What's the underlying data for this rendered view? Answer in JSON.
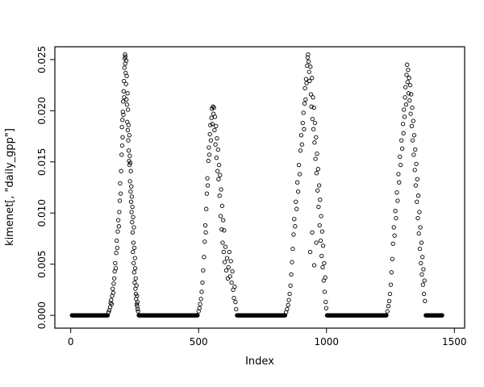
{
  "chart_data": {
    "type": "scatter",
    "title": "",
    "xlabel": "Index",
    "ylabel": "kimenet[, \"daily_gpp\"]",
    "xlim": [
      0,
      1500
    ],
    "ylim": [
      0.0,
      0.025
    ],
    "xticks": [
      0,
      500,
      1000,
      1500
    ],
    "yticks": [
      0.0,
      0.005,
      0.01,
      0.015,
      0.02,
      0.025
    ],
    "ytick_labels": [
      "0.000",
      "0.005",
      "0.010",
      "0.015",
      "0.020",
      "0.025"
    ],
    "grid": false,
    "legend": "none",
    "marker": {
      "shape": "open-circle",
      "color": "#000000"
    },
    "zero_step": 2,
    "zero_runs": [
      [
        5,
        146
      ],
      [
        266,
        497
      ],
      [
        650,
        838
      ],
      [
        1002,
        1234
      ],
      [
        1388,
        1452
      ]
    ],
    "points": [
      [
        148,
        0.0003
      ],
      [
        151,
        0.0005
      ],
      [
        154,
        0.0008
      ],
      [
        156,
        0.0012
      ],
      [
        158,
        0.0015
      ],
      [
        160,
        0.0011
      ],
      [
        162,
        0.0019
      ],
      [
        164,
        0.0026
      ],
      [
        166,
        0.0022
      ],
      [
        168,
        0.0031
      ],
      [
        170,
        0.0036
      ],
      [
        172,
        0.0043
      ],
      [
        174,
        0.0051
      ],
      [
        176,
        0.0046
      ],
      [
        178,
        0.0061
      ],
      [
        180,
        0.0073
      ],
      [
        182,
        0.0066
      ],
      [
        184,
        0.0082
      ],
      [
        186,
        0.0093
      ],
      [
        188,
        0.0087
      ],
      [
        190,
        0.0101
      ],
      [
        192,
        0.0112
      ],
      [
        193,
        0.0129
      ],
      [
        195,
        0.0119
      ],
      [
        197,
        0.0141
      ],
      [
        199,
        0.0157
      ],
      [
        200,
        0.0184
      ],
      [
        201,
        0.0166
      ],
      [
        202,
        0.0191
      ],
      [
        203,
        0.0174
      ],
      [
        204,
        0.0199
      ],
      [
        205,
        0.0209
      ],
      [
        206,
        0.0196
      ],
      [
        207,
        0.0219
      ],
      [
        208,
        0.0229
      ],
      [
        209,
        0.0213
      ],
      [
        210,
        0.0242
      ],
      [
        211,
        0.0251
      ],
      [
        212,
        0.0255
      ],
      [
        213,
        0.0246
      ],
      [
        214,
        0.0253
      ],
      [
        215,
        0.0237
      ],
      [
        216,
        0.0226
      ],
      [
        217,
        0.0249
      ],
      [
        218,
        0.0211
      ],
      [
        219,
        0.0234
      ],
      [
        220,
        0.0206
      ],
      [
        221,
        0.0189
      ],
      [
        222,
        0.0217
      ],
      [
        223,
        0.0181
      ],
      [
        224,
        0.0201
      ],
      [
        225,
        0.0171
      ],
      [
        226,
        0.0186
      ],
      [
        227,
        0.0161
      ],
      [
        228,
        0.0151
      ],
      [
        229,
        0.0176
      ],
      [
        230,
        0.0147
      ],
      [
        231,
        0.0156
      ],
      [
        232,
        0.0131
      ],
      [
        233,
        0.0149
      ],
      [
        234,
        0.0121
      ],
      [
        235,
        0.0141
      ],
      [
        236,
        0.0111
      ],
      [
        237,
        0.0126
      ],
      [
        238,
        0.0101
      ],
      [
        239,
        0.0116
      ],
      [
        240,
        0.0091
      ],
      [
        241,
        0.0106
      ],
      [
        242,
        0.0081
      ],
      [
        243,
        0.0062
      ],
      [
        244,
        0.0096
      ],
      [
        245,
        0.0071
      ],
      [
        246,
        0.0051
      ],
      [
        247,
        0.0086
      ],
      [
        248,
        0.0042
      ],
      [
        249,
        0.0066
      ],
      [
        250,
        0.0032
      ],
      [
        251,
        0.0056
      ],
      [
        252,
        0.0046
      ],
      [
        253,
        0.0026
      ],
      [
        254,
        0.0036
      ],
      [
        255,
        0.0021
      ],
      [
        256,
        0.0016
      ],
      [
        257,
        0.0029
      ],
      [
        258,
        0.0011
      ],
      [
        259,
        0.0019
      ],
      [
        260,
        0.0009
      ],
      [
        261,
        0.0013
      ],
      [
        262,
        0.0006
      ],
      [
        263,
        0.0004
      ],
      [
        500,
        0.0004
      ],
      [
        503,
        0.0007
      ],
      [
        506,
        0.0011
      ],
      [
        509,
        0.0016
      ],
      [
        512,
        0.0023
      ],
      [
        515,
        0.0032
      ],
      [
        518,
        0.0044
      ],
      [
        521,
        0.0057
      ],
      [
        524,
        0.0072
      ],
      [
        526,
        0.0088
      ],
      [
        528,
        0.0081
      ],
      [
        530,
        0.0104
      ],
      [
        532,
        0.0119
      ],
      [
        534,
        0.0134
      ],
      [
        536,
        0.0127
      ],
      [
        538,
        0.0151
      ],
      [
        540,
        0.0164
      ],
      [
        542,
        0.0157
      ],
      [
        544,
        0.0177
      ],
      [
        546,
        0.0186
      ],
      [
        548,
        0.0171
      ],
      [
        550,
        0.0193
      ],
      [
        552,
        0.0202
      ],
      [
        554,
        0.0187
      ],
      [
        556,
        0.0204
      ],
      [
        558,
        0.0197
      ],
      [
        560,
        0.0203
      ],
      [
        562,
        0.0181
      ],
      [
        564,
        0.0194
      ],
      [
        566,
        0.0167
      ],
      [
        568,
        0.0185
      ],
      [
        570,
        0.0154
      ],
      [
        572,
        0.0173
      ],
      [
        574,
        0.0141
      ],
      [
        576,
        0.0162
      ],
      [
        578,
        0.0133
      ],
      [
        580,
        0.0147
      ],
      [
        582,
        0.0117
      ],
      [
        584,
        0.0137
      ],
      [
        586,
        0.0097
      ],
      [
        588,
        0.0123
      ],
      [
        590,
        0.0084
      ],
      [
        592,
        0.0107
      ],
      [
        594,
        0.0071
      ],
      [
        596,
        0.0093
      ],
      [
        598,
        0.0062
      ],
      [
        600,
        0.0083
      ],
      [
        602,
        0.0052
      ],
      [
        605,
        0.0067
      ],
      [
        608,
        0.0044
      ],
      [
        611,
        0.0056
      ],
      [
        614,
        0.0036
      ],
      [
        617,
        0.0047
      ],
      [
        620,
        0.0062
      ],
      [
        623,
        0.0038
      ],
      [
        626,
        0.0053
      ],
      [
        629,
        0.0032
      ],
      [
        632,
        0.0043
      ],
      [
        635,
        0.0025
      ],
      [
        638,
        0.0017
      ],
      [
        641,
        0.0028
      ],
      [
        644,
        0.0013
      ],
      [
        647,
        0.0006
      ],
      [
        842,
        0.0003
      ],
      [
        846,
        0.0006
      ],
      [
        850,
        0.001
      ],
      [
        853,
        0.0015
      ],
      [
        856,
        0.0021
      ],
      [
        859,
        0.0029
      ],
      [
        862,
        0.004
      ],
      [
        865,
        0.0052
      ],
      [
        868,
        0.0065
      ],
      [
        871,
        0.0079
      ],
      [
        874,
        0.0094
      ],
      [
        877,
        0.0087
      ],
      [
        880,
        0.0111
      ],
      [
        883,
        0.0104
      ],
      [
        886,
        0.013
      ],
      [
        889,
        0.0121
      ],
      [
        892,
        0.0147
      ],
      [
        895,
        0.0138
      ],
      [
        898,
        0.0161
      ],
      [
        901,
        0.0176
      ],
      [
        904,
        0.0167
      ],
      [
        907,
        0.0188
      ],
      [
        910,
        0.0198
      ],
      [
        912,
        0.0182
      ],
      [
        914,
        0.0207
      ],
      [
        916,
        0.0222
      ],
      [
        918,
        0.0211
      ],
      [
        920,
        0.0231
      ],
      [
        922,
        0.0227
      ],
      [
        924,
        0.0244
      ],
      [
        926,
        0.0252
      ],
      [
        928,
        0.0255
      ],
      [
        930,
        0.0248
      ],
      [
        932,
        0.0238
      ],
      [
        934,
        0.0229
      ],
      [
        936,
        0.0062
      ],
      [
        937,
        0.0243
      ],
      [
        939,
        0.0216
      ],
      [
        941,
        0.0204
      ],
      [
        943,
        0.0232
      ],
      [
        944,
        0.0081
      ],
      [
        945,
        0.0192
      ],
      [
        947,
        0.0213
      ],
      [
        949,
        0.0182
      ],
      [
        951,
        0.0203
      ],
      [
        952,
        0.0049
      ],
      [
        953,
        0.0169
      ],
      [
        955,
        0.0188
      ],
      [
        957,
        0.0153
      ],
      [
        959,
        0.0174
      ],
      [
        960,
        0.0071
      ],
      [
        961,
        0.0139
      ],
      [
        963,
        0.0158
      ],
      [
        965,
        0.0122
      ],
      [
        967,
        0.0143
      ],
      [
        969,
        0.0106
      ],
      [
        971,
        0.0127
      ],
      [
        973,
        0.0088
      ],
      [
        975,
        0.0113
      ],
      [
        977,
        0.0073
      ],
      [
        979,
        0.0097
      ],
      [
        981,
        0.0058
      ],
      [
        983,
        0.0082
      ],
      [
        985,
        0.0047
      ],
      [
        987,
        0.0068
      ],
      [
        989,
        0.0034
      ],
      [
        991,
        0.0051
      ],
      [
        993,
        0.0023
      ],
      [
        995,
        0.0037
      ],
      [
        997,
        0.0013
      ],
      [
        999,
        0.0007
      ],
      [
        1238,
        0.0004
      ],
      [
        1242,
        0.0009
      ],
      [
        1245,
        0.0014
      ],
      [
        1248,
        0.0021
      ],
      [
        1251,
        0.003
      ],
      [
        1254,
        0.0042
      ],
      [
        1257,
        0.0055
      ],
      [
        1260,
        0.007
      ],
      [
        1263,
        0.0086
      ],
      [
        1266,
        0.0078
      ],
      [
        1269,
        0.0102
      ],
      [
        1272,
        0.0095
      ],
      [
        1275,
        0.012
      ],
      [
        1278,
        0.0112
      ],
      [
        1281,
        0.0138
      ],
      [
        1284,
        0.013
      ],
      [
        1287,
        0.0155
      ],
      [
        1290,
        0.0147
      ],
      [
        1293,
        0.0171
      ],
      [
        1296,
        0.0163
      ],
      [
        1299,
        0.0187
      ],
      [
        1301,
        0.0178
      ],
      [
        1303,
        0.0201
      ],
      [
        1305,
        0.0194
      ],
      [
        1307,
        0.0213
      ],
      [
        1309,
        0.0223
      ],
      [
        1311,
        0.0206
      ],
      [
        1313,
        0.0235
      ],
      [
        1315,
        0.0245
      ],
      [
        1317,
        0.0228
      ],
      [
        1319,
        0.024
      ],
      [
        1321,
        0.0217
      ],
      [
        1323,
        0.0232
      ],
      [
        1325,
        0.021
      ],
      [
        1327,
        0.0225
      ],
      [
        1329,
        0.0197
      ],
      [
        1331,
        0.0216
      ],
      [
        1333,
        0.0185
      ],
      [
        1335,
        0.0203
      ],
      [
        1337,
        0.0171
      ],
      [
        1339,
        0.019
      ],
      [
        1341,
        0.0157
      ],
      [
        1343,
        0.0176
      ],
      [
        1345,
        0.0142
      ],
      [
        1347,
        0.0162
      ],
      [
        1349,
        0.0127
      ],
      [
        1351,
        0.0148
      ],
      [
        1353,
        0.0111
      ],
      [
        1355,
        0.0133
      ],
      [
        1357,
        0.0095
      ],
      [
        1359,
        0.0117
      ],
      [
        1361,
        0.008
      ],
      [
        1363,
        0.0101
      ],
      [
        1365,
        0.0065
      ],
      [
        1367,
        0.0086
      ],
      [
        1369,
        0.0051
      ],
      [
        1371,
        0.0071
      ],
      [
        1373,
        0.004
      ],
      [
        1375,
        0.0057
      ],
      [
        1377,
        0.003
      ],
      [
        1379,
        0.0045
      ],
      [
        1381,
        0.0021
      ],
      [
        1383,
        0.0034
      ],
      [
        1385,
        0.0014
      ]
    ]
  }
}
